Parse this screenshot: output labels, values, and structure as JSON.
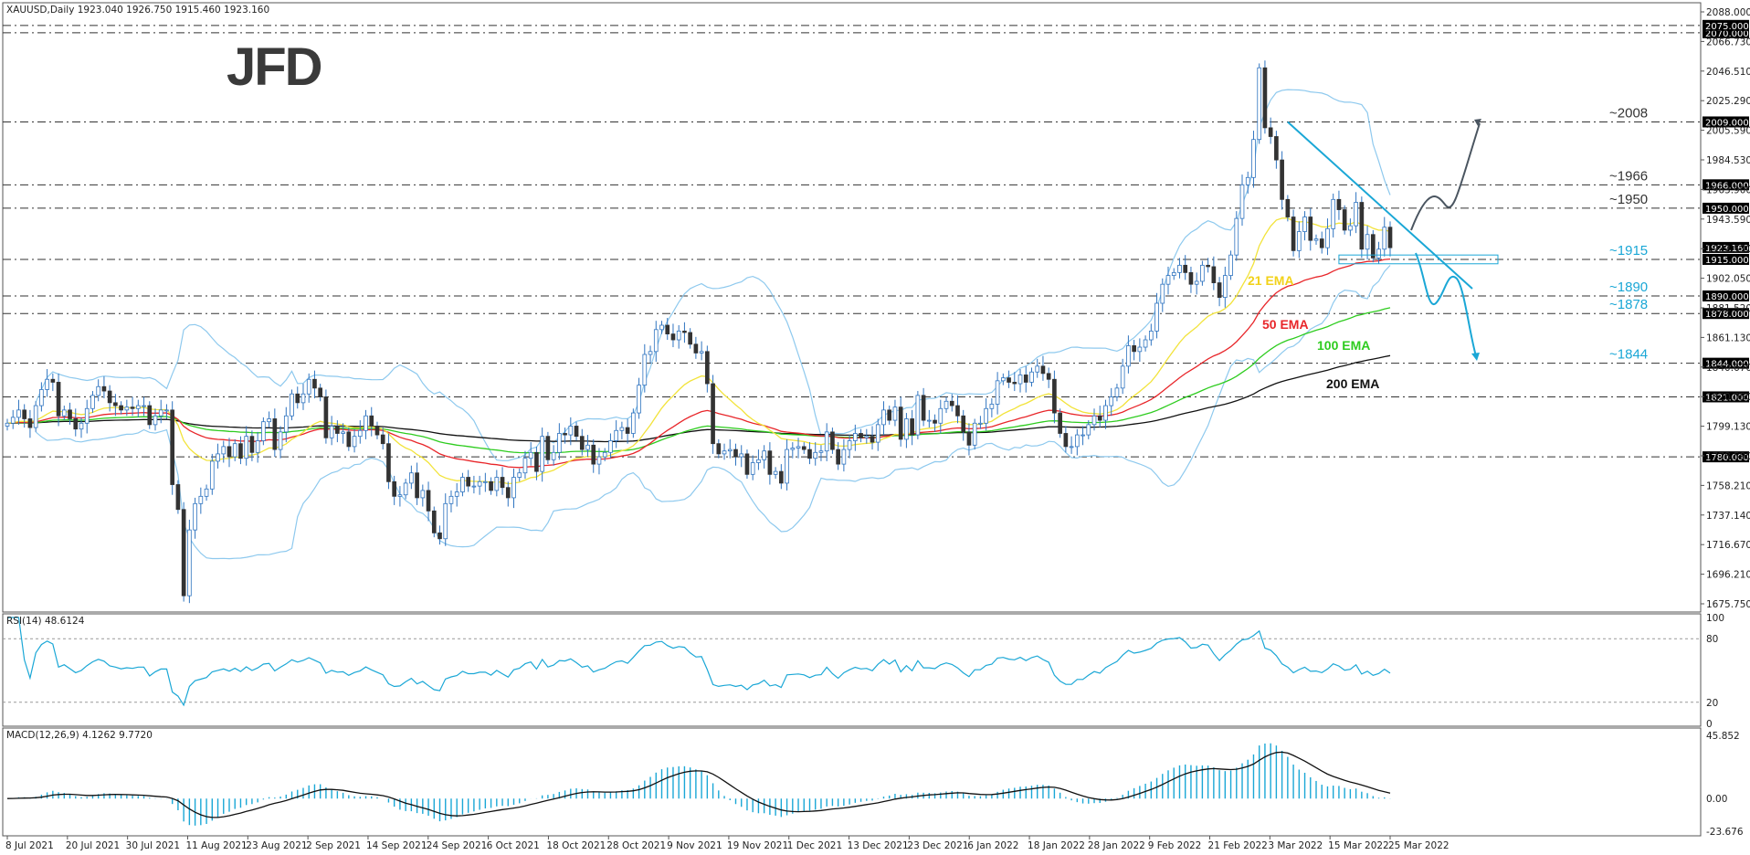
{
  "header": {
    "price_title": "XAUUSD,Daily  1923.040 1926.750 1915.460 1923.160",
    "rsi_title": "RSI(14) 48.6124",
    "macd_title": "MACD(12,26,9) 4.1262 9.7720"
  },
  "logo": {
    "text": "JFD",
    "color": "#3a3a3a"
  },
  "colors": {
    "bull_candle": "#ffffff",
    "bear_candle": "#333333",
    "candle_outline": "#2f74c0",
    "bollinger": "#8ec9ee",
    "ema21": "#f2e33a",
    "ema50": "#e8262a",
    "ema100": "#2ecc1f",
    "ema200": "#111111",
    "trend_line": "#1aa7d6",
    "up_scenario": "#4a5560",
    "down_scenario": "#1aa7d6",
    "rsi_line": "#1aa7d6",
    "macd_hist": "#1aa7d6",
    "macd_signal": "#111111"
  },
  "levels": [
    {
      "label": "~2008",
      "value": 2009.0,
      "badge": "2009.000",
      "color": "#333333"
    },
    {
      "label": "~1966",
      "value": 1966.0,
      "badge": "1966.000",
      "color": "#333333"
    },
    {
      "label": "~1950",
      "value": 1950.0,
      "badge": "1950.000",
      "color": "#333333"
    },
    {
      "label": "~1915",
      "value": 1915.0,
      "badge": "1915.000",
      "color": "#1aa7d6"
    },
    {
      "label": "~1890",
      "value": 1890.0,
      "badge": "1890.000",
      "color": "#1aa7d6"
    },
    {
      "label": "~1878",
      "value": 1878.0,
      "badge": "1878.000",
      "color": "#1aa7d6"
    },
    {
      "label": "~1844",
      "value": 1844.0,
      "badge": "1844.000",
      "color": "#1aa7d6"
    },
    {
      "label": "",
      "value": 1821.0,
      "badge": "1821.000",
      "color": "#333333"
    },
    {
      "label": "",
      "value": 1780.0,
      "badge": "1780.000",
      "color": "#333333"
    },
    {
      "label": "",
      "value": 2070.0,
      "badge": "2070.000",
      "color": "#333333"
    },
    {
      "label": "",
      "value": 2075.0,
      "badge": "2075.000",
      "color": "#333333"
    }
  ],
  "current_price_badge": {
    "value": 1923.16,
    "text": "1923.160"
  },
  "ema_labels": [
    {
      "text": "21 EMA",
      "color": "#f2d21a"
    },
    {
      "text": "50 EMA",
      "color": "#e8262a"
    },
    {
      "text": "100 EMA",
      "color": "#2ecc1f"
    },
    {
      "text": "200 EMA",
      "color": "#111111"
    }
  ],
  "chart_data": [
    {
      "type": "candlestick",
      "title": "XAUUSD,Daily",
      "x_tick_labels": [
        "8 Jul 2021",
        "20 Jul 2021",
        "30 Jul 2021",
        "11 Aug 2021",
        "23 Aug 2021",
        "2 Sep 2021",
        "14 Sep 2021",
        "24 Sep 2021",
        "6 Oct 2021",
        "18 Oct 2021",
        "28 Oct 2021",
        "9 Nov 2021",
        "19 Nov 2021",
        "1 Dec 2021",
        "13 Dec 2021",
        "23 Dec 2021",
        "6 Jan 2022",
        "18 Jan 2022",
        "28 Jan 2022",
        "9 Feb 2022",
        "21 Feb 2022",
        "3 Mar 2022",
        "15 Mar 2022",
        "25 Mar 2022"
      ],
      "y_tick_labels": [
        "2088.000",
        "2066.730",
        "2046.510",
        "2025.290",
        "2005.590",
        "1984.530",
        "1963.900",
        "1943.590",
        "1922.530",
        "1902.050",
        "1881.520",
        "1861.130",
        "1840.670",
        "1820.050",
        "1799.130",
        "1778.590",
        "1758.210",
        "1737.140",
        "1716.670",
        "1696.210",
        "1675.750"
      ],
      "ylim": [
        1675.75,
        2088.0
      ],
      "closes": [
        1803,
        1807,
        1812,
        1806,
        1800,
        1815,
        1826,
        1833,
        1831,
        1808,
        1812,
        1806,
        1799,
        1803,
        1813,
        1822,
        1828,
        1825,
        1817,
        1815,
        1812,
        1814,
        1813,
        1815,
        1815,
        1802,
        1808,
        1812,
        1812,
        1761,
        1744,
        1685,
        1730,
        1748,
        1753,
        1758,
        1777,
        1782,
        1787,
        1780,
        1789,
        1779,
        1794,
        1783,
        1791,
        1804,
        1806,
        1785,
        1797,
        1808,
        1823,
        1817,
        1823,
        1833,
        1827,
        1821,
        1793,
        1801,
        1796,
        1797,
        1787,
        1794,
        1798,
        1808,
        1801,
        1795,
        1789,
        1763,
        1753,
        1754,
        1762,
        1769,
        1752,
        1757,
        1743,
        1728,
        1724,
        1748,
        1753,
        1756,
        1766,
        1760,
        1760,
        1763,
        1763,
        1757,
        1766,
        1759,
        1752,
        1766,
        1769,
        1779,
        1783,
        1770,
        1794,
        1778,
        1783,
        1796,
        1795,
        1801,
        1794,
        1785,
        1788,
        1775,
        1780,
        1783,
        1791,
        1798,
        1800,
        1796,
        1810,
        1829,
        1850,
        1852,
        1867,
        1870,
        1864,
        1860,
        1866,
        1865,
        1857,
        1851,
        1852,
        1830,
        1789,
        1782,
        1784,
        1785,
        1780,
        1782,
        1768,
        1776,
        1778,
        1784,
        1768,
        1770,
        1762,
        1785,
        1786,
        1787,
        1785,
        1779,
        1783,
        1784,
        1797,
        1785,
        1775,
        1785,
        1791,
        1796,
        1793,
        1794,
        1790,
        1802,
        1812,
        1805,
        1814,
        1792,
        1806,
        1795,
        1822,
        1805,
        1805,
        1803,
        1813,
        1818,
        1815,
        1808,
        1797,
        1788,
        1803,
        1803,
        1813,
        1816,
        1832,
        1834,
        1831,
        1830,
        1836,
        1831,
        1838,
        1842,
        1837,
        1833,
        1810,
        1796,
        1787,
        1787,
        1795,
        1795,
        1802,
        1808,
        1805,
        1815,
        1821,
        1827,
        1842,
        1856,
        1852,
        1855,
        1860,
        1866,
        1885,
        1898,
        1904,
        1906,
        1911,
        1906,
        1898,
        1900,
        1911,
        1910,
        1899,
        1889,
        1904,
        1918,
        1943,
        1966,
        1971,
        1997,
        2046,
        2005,
        1999,
        1983,
        1956,
        1944,
        1921,
        1934,
        1944,
        1928,
        1929,
        1923,
        1936,
        1956,
        1949,
        1935,
        1938,
        1954,
        1922,
        1932,
        1916,
        1922,
        1937,
        1923
      ]
    },
    {
      "type": "line",
      "title": "RSI(14) 48.6124",
      "y_tick_labels": [
        "100",
        "80",
        "20",
        "0"
      ],
      "ylim": [
        0,
        100
      ],
      "reference_lines": [
        80,
        20
      ],
      "last_value": 48.6124
    },
    {
      "type": "bar",
      "title": "MACD(12,26,9) 4.1262 9.7720",
      "y_tick_labels": [
        "45.852",
        "0.00",
        "-23.676"
      ],
      "ylim": [
        -23.676,
        45.852
      ],
      "last_macd": 4.1262,
      "last_signal": 9.772
    }
  ]
}
